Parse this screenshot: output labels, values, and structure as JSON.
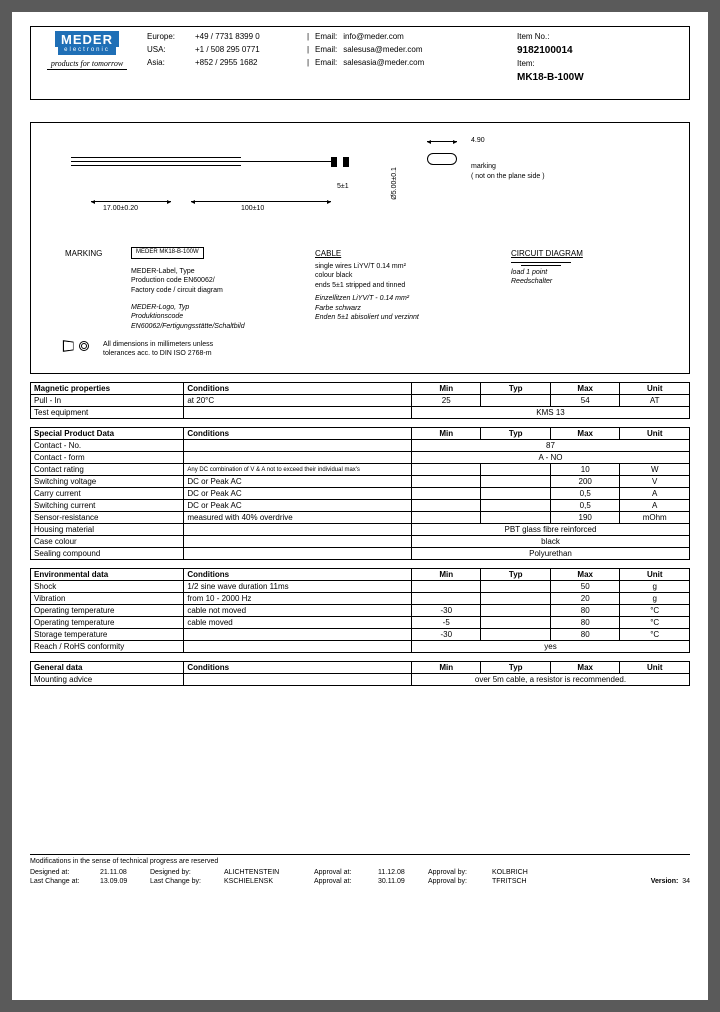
{
  "header": {
    "logo": "MEDER",
    "logo_sub": "electronic",
    "tagline": "products for tomorrow",
    "contacts": [
      {
        "region": "Europe:",
        "phone": "+49 / 7731 8399 0",
        "email_lbl": "Email:",
        "email": "info@meder.com"
      },
      {
        "region": "USA:",
        "phone": "+1 / 508 295 0771",
        "email_lbl": "Email:",
        "email": "salesusa@meder.com"
      },
      {
        "region": "Asia:",
        "phone": "+852 / 2955 1682",
        "email_lbl": "Email:",
        "email": "salesasia@meder.com"
      }
    ],
    "item_no_lbl": "Item No.:",
    "item_no": "9182100014",
    "item_lbl": "Item:",
    "item": "MK18-B-100W"
  },
  "drawing": {
    "dim_490": "4.90",
    "marking_note1": "marking",
    "marking_note2": "( not on the plane side )",
    "dim_17": "17.00±0.20",
    "dim_100": "100±10",
    "dim_5": "5±1",
    "dim_dia": "Ø5.00±0.1",
    "markng": "MARKING",
    "marking_text": "MEDER MK18-B-100W",
    "meder_label": "MEDER-Label, Type\nProduction code EN60062/\nFactory code / circuit diagram",
    "meder_label_it": "MEDER-Logo, Typ\nProduktionscode\nEN60062/Fertigungsstätte/Schaltbild",
    "cable_h": "CABLE",
    "cable_1": "single wires  LiYV/T 0.14 mm²\ncolour black\nends 5±1 stripped and tinned",
    "cable_2": "Einzellitzen LiYV/T - 0.14 mm²\nFarbe schwarz\nEnden 5±1 abisoliert und verzinnt",
    "circuit_h": "CIRCUIT DIAGRAM",
    "circuit_sub": "load 1 point\nReedschalter",
    "proj_note": "All dimensions in millimeters unless\ntolerances acc. to DIN ISO 2768-m"
  },
  "tables": {
    "magnetic": {
      "title": "Magnetic properties",
      "cond": "Conditions",
      "cols": [
        "Min",
        "Typ",
        "Max",
        "Unit"
      ],
      "rows": [
        {
          "label": "Pull - In",
          "cond": "at 20°C",
          "min": "25",
          "typ": "",
          "max": "54",
          "unit": "AT"
        },
        {
          "label": "Test equipment",
          "cond": "",
          "span": "KMS 13"
        }
      ]
    },
    "special": {
      "title": "Special Product Data",
      "rows": [
        {
          "label": "Contact - No.",
          "cond": "",
          "span": "87"
        },
        {
          "label": "Contact - form",
          "cond": "",
          "span": "A - NO"
        },
        {
          "label": "Contact rating",
          "cond": "Any DC combination of V & A\nnot to exceed their individual max's",
          "min": "",
          "typ": "",
          "max": "10",
          "unit": "W"
        },
        {
          "label": "Switching voltage",
          "cond": "DC or Peak AC",
          "min": "",
          "typ": "",
          "max": "200",
          "unit": "V"
        },
        {
          "label": "Carry current",
          "cond": "DC or Peak AC",
          "min": "",
          "typ": "",
          "max": "0,5",
          "unit": "A"
        },
        {
          "label": "Switching current",
          "cond": "DC or Peak AC",
          "min": "",
          "typ": "",
          "max": "0,5",
          "unit": "A"
        },
        {
          "label": "Sensor-resistance",
          "cond": "measured with 40% overdrive",
          "min": "",
          "typ": "",
          "max": "190",
          "unit": "mOhm"
        },
        {
          "label": "Housing material",
          "cond": "",
          "span": "PBT glass fibre reinforced"
        },
        {
          "label": "Case colour",
          "cond": "",
          "span": "black"
        },
        {
          "label": "Sealing compound",
          "cond": "",
          "span": "Polyurethan"
        }
      ]
    },
    "env": {
      "title": "Environmental data",
      "rows": [
        {
          "label": "Shock",
          "cond": "1/2 sine wave duration 11ms",
          "min": "",
          "typ": "",
          "max": "50",
          "unit": "g"
        },
        {
          "label": "Vibration",
          "cond": "from  10 - 2000 Hz",
          "min": "",
          "typ": "",
          "max": "20",
          "unit": "g"
        },
        {
          "label": "Operating temperature",
          "cond": "cable not moved",
          "min": "-30",
          "typ": "",
          "max": "80",
          "unit": "°C"
        },
        {
          "label": "Operating temperature",
          "cond": "cable moved",
          "min": "-5",
          "typ": "",
          "max": "80",
          "unit": "°C"
        },
        {
          "label": "Storage temperature",
          "cond": "",
          "min": "-30",
          "typ": "",
          "max": "80",
          "unit": "°C"
        },
        {
          "label": "Reach / RoHS conformity",
          "cond": "",
          "span": "yes"
        }
      ]
    },
    "general": {
      "title": "General data",
      "rows": [
        {
          "label": "Mounting advice",
          "cond": "",
          "span": "over 5m cable, a resistor is  recommended."
        }
      ]
    }
  },
  "footer": {
    "note": "Modifications in the sense of technical progress are reserved",
    "r1": {
      "a": "Designed at:",
      "b": "21.11.08",
      "c": "Designed by:",
      "d": "ALICHTENSTEIN",
      "e": "Approval at:",
      "f": "11.12.08",
      "g": "Approval by:",
      "h": "KOLBRICH"
    },
    "r2": {
      "a": "Last Change at:",
      "b": "13.09.09",
      "c": "Last Change by:",
      "d": "KSCHIELENSK",
      "e": "Approval at:",
      "f": "30.11.09",
      "g": "Approval by:",
      "h": "TFRITSCH"
    },
    "version_lbl": "Version:",
    "version": "34"
  }
}
